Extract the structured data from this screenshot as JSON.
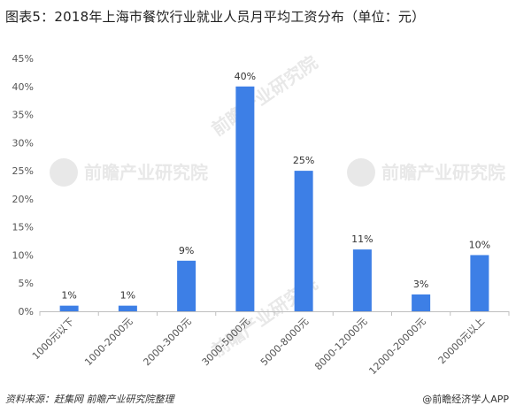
{
  "title": "图表5：2018年上海市餐饮行业就业人员月平均工资分布（单位：元）",
  "footer": {
    "source": "资料来源：赶集网  前瞻产业研究院整理",
    "brand": "@前瞻经济学人APP"
  },
  "watermark": {
    "text": "前瞻产业研究院"
  },
  "chart_data": {
    "type": "bar",
    "categories": [
      "1000元以下",
      "1000-2000元",
      "2000-3000元",
      "3000-5000元",
      "5000-8000元",
      "8000-12000元",
      "12000-20000元",
      "20000元以上"
    ],
    "values": [
      1,
      1,
      9,
      40,
      25,
      11,
      3,
      10
    ],
    "value_labels": [
      "1%",
      "1%",
      "9%",
      "40%",
      "25%",
      "11%",
      "3%",
      "10%"
    ],
    "unit": "%",
    "ylim": [
      0,
      45
    ],
    "yticks": [
      0,
      5,
      10,
      15,
      20,
      25,
      30,
      35,
      40,
      45
    ],
    "ytick_labels": [
      "0%",
      "5%",
      "10%",
      "15%",
      "20%",
      "25%",
      "30%",
      "35%",
      "40%",
      "45%"
    ],
    "bar_color": "#3d7fe6",
    "grid": false,
    "legend": "none"
  }
}
